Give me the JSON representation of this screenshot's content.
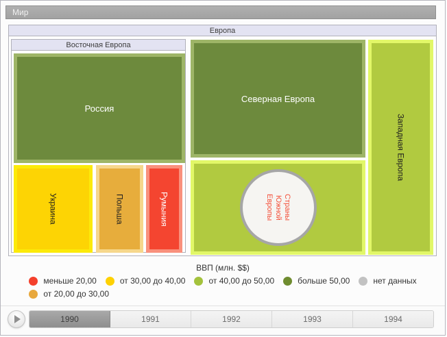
{
  "treemap": {
    "world_label": "Мир",
    "europe_label": "Европа",
    "eastern_europe_label": "Восточная Европа",
    "tiles": {
      "russia": "Россия",
      "ukraine": "Украина",
      "poland": "Польша",
      "romania": "Румыния",
      "northern_europe": "Северная Европа",
      "southern_europe": "Страны Южной Европы",
      "western_europe": "Западная Европа"
    }
  },
  "legend": {
    "title": "ВВП (млн. $$)",
    "items": [
      {
        "label": "меньше 20,00",
        "color": "#f4402c"
      },
      {
        "label": "от 20,00 до 30,00",
        "color": "#e8a83d"
      },
      {
        "label": "от 30,00 до 40,00",
        "color": "#fed102"
      },
      {
        "label": "от 40,00 до 50,00",
        "color": "#a4c23c"
      },
      {
        "label": "больше 50,00",
        "color": "#6f8c2f"
      },
      {
        "label": "нет данных",
        "color": "#c2c2c2"
      }
    ]
  },
  "timeline": {
    "years": [
      "1990",
      "1991",
      "1992",
      "1993",
      "1994"
    ],
    "selected": "1990"
  },
  "palette": {
    "green_fill": "#6d8a3d",
    "green_border": "#9eb567",
    "lime_fill": "#b1ca40",
    "lime_border": "#e2f768",
    "yellow_fill": "#fdd404",
    "yellow_border": "#fcea0a",
    "orange_fill": "#e7ad3c",
    "orange_border": "#f6d78c",
    "red_fill": "#f44530",
    "red_border": "#f9907c",
    "circle_fill": "#f6f5f2",
    "circle_border": "#a6a6a6",
    "circle_text": "#f4503a",
    "header_bg": "#e3e3f2",
    "world_bar_bg": "#a9a9a9"
  },
  "chart_data": {
    "type": "treemap",
    "title": "ВВП (млн. $$)",
    "legend_position": "bottom",
    "value_categories": [
      "меньше 20,00",
      "от 20,00 до 30,00",
      "от 30,00 до 40,00",
      "от 40,00 до 50,00",
      "больше 50,00",
      "нет данных"
    ],
    "year_shown": "1990",
    "root": {
      "name": "Мир",
      "children": [
        {
          "name": "Европа",
          "children": [
            {
              "name": "Восточная Европа",
              "children": [
                {
                  "name": "Россия",
                  "category": "больше 50,00"
                },
                {
                  "name": "Украина",
                  "category": "от 30,00 до 40,00"
                },
                {
                  "name": "Польша",
                  "category": "от 20,00 до 30,00"
                },
                {
                  "name": "Румыния",
                  "category": "меньше 20,00"
                }
              ]
            },
            {
              "name": "Северная Европа",
              "category": "больше 50,00"
            },
            {
              "name": "Страны Южной Европы",
              "category": "от 40,00 до 50,00"
            },
            {
              "name": "Западная Европа",
              "category": "от 40,00 до 50,00"
            }
          ]
        }
      ]
    }
  }
}
